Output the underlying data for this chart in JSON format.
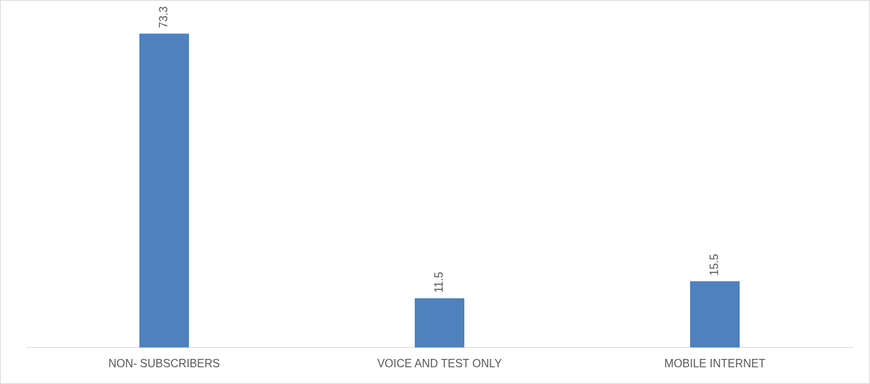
{
  "chart_data": {
    "type": "bar",
    "categories": [
      "NON- SUBSCRIBERS",
      "VOICE AND TEST ONLY",
      "MOBILE INTERNET"
    ],
    "values": [
      73.3,
      11.5,
      15.5
    ],
    "color": "#4f81bd",
    "data_labels": true,
    "grid": false,
    "legend": false
  }
}
